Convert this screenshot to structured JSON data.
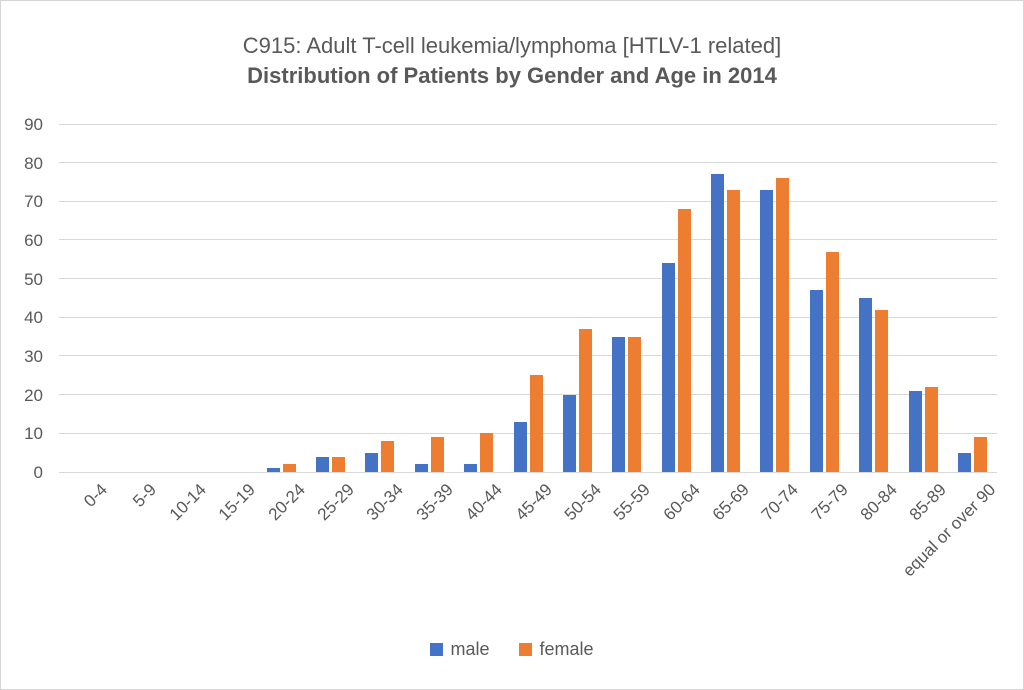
{
  "title": {
    "line1": "C915: Adult T-cell leukemia/lymphoma [HTLV-1 related]",
    "line2": "Distribution of Patients by Gender and Age in 2014"
  },
  "chart_data": {
    "type": "bar",
    "title": "C915: Adult T-cell leukemia/lymphoma [HTLV-1 related]",
    "subtitle": "Distribution of Patients by Gender and Age in 2014",
    "categories": [
      "0-4",
      "5-9",
      "10-14",
      "15-19",
      "20-24",
      "25-29",
      "30-34",
      "35-39",
      "40-44",
      "45-49",
      "50-54",
      "55-59",
      "60-64",
      "65-69",
      "70-74",
      "75-79",
      "80-84",
      "85-89",
      "equal or over 90"
    ],
    "series": [
      {
        "name": "male",
        "color": "#4472C4",
        "values": [
          0,
          0,
          0,
          0,
          1,
          4,
          5,
          2,
          2,
          13,
          20,
          35,
          54,
          77,
          73,
          47,
          45,
          21,
          5
        ]
      },
      {
        "name": "female",
        "color": "#ED7D31",
        "values": [
          0,
          0,
          0,
          0,
          2,
          4,
          8,
          9,
          10,
          25,
          37,
          35,
          68,
          73,
          76,
          57,
          42,
          22,
          9
        ]
      }
    ],
    "xlabel": "",
    "ylabel": "",
    "ylim": [
      0,
      90
    ],
    "yticks": [
      0,
      10,
      20,
      30,
      40,
      50,
      60,
      70,
      80,
      90
    ],
    "grid": "horizontal",
    "legend_position": "bottom"
  },
  "colors": {
    "male": "#4472C4",
    "female": "#ED7D31",
    "gridline": "#d9d9d9",
    "axis_text": "#595959",
    "border": "#d4d4d4"
  }
}
